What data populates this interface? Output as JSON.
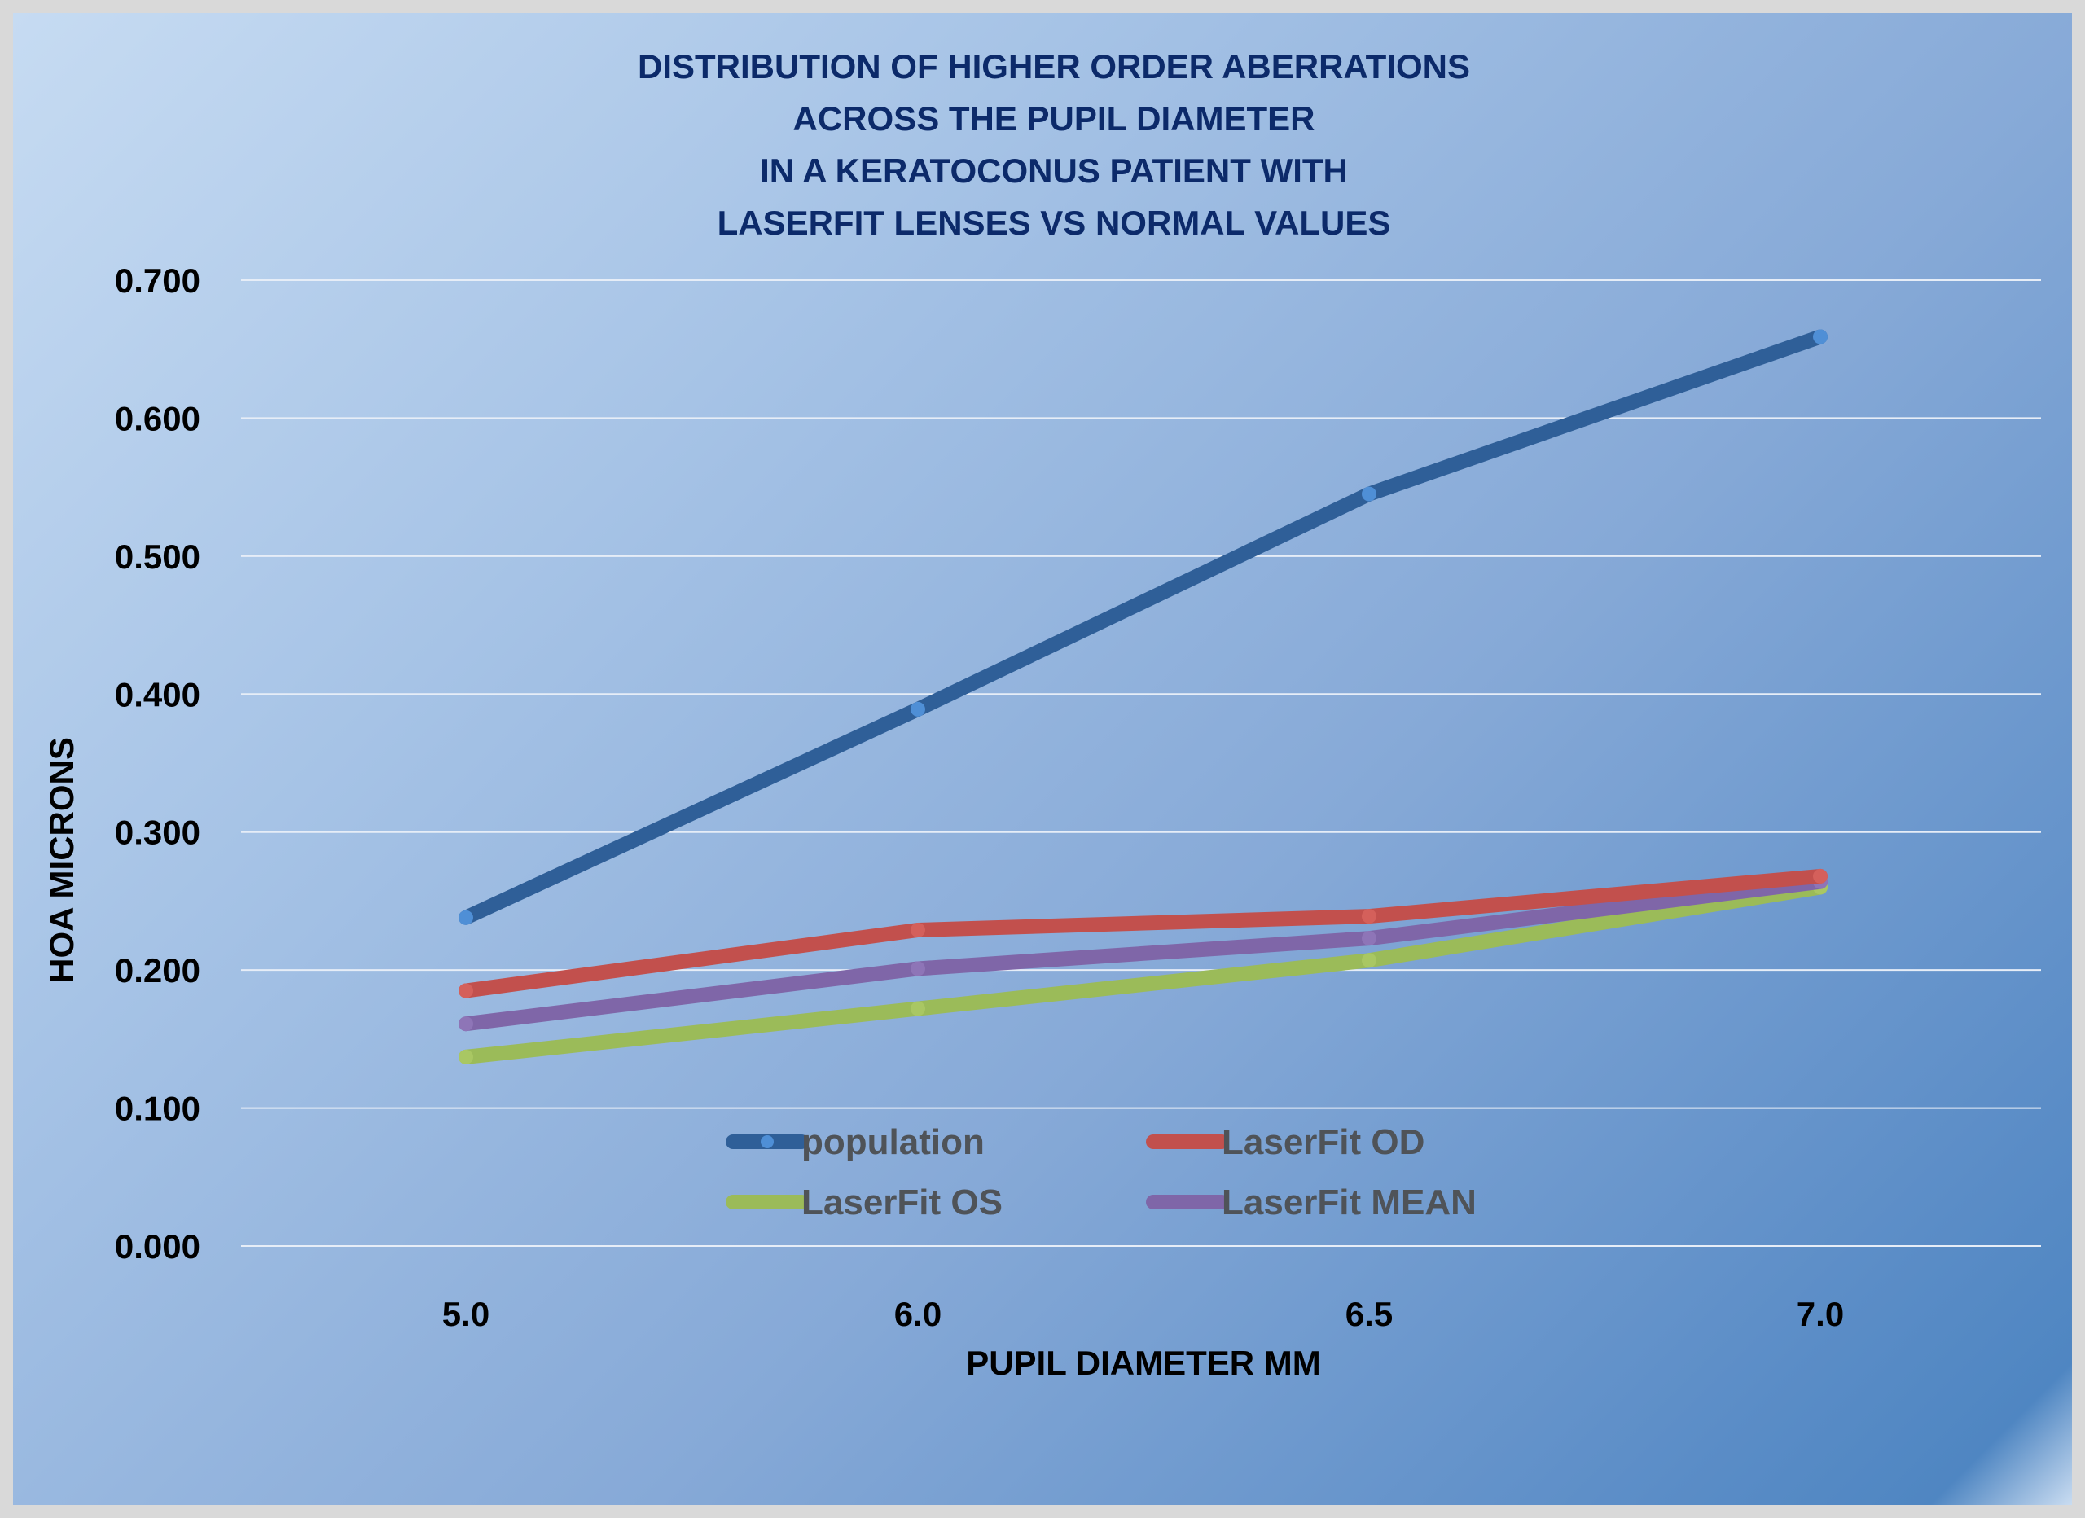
{
  "chart_data": {
    "type": "line",
    "title_lines": [
      "DISTRIBUTION OF HIGHER ORDER ABERRATIONS",
      "ACROSS THE PUPIL DIAMETER",
      "IN A KERATOCONUS PATIENT WITH",
      "LASERFIT LENSES VS NORMAL VALUES"
    ],
    "xlabel": "PUPIL DIAMETER MM",
    "ylabel": "HOA MICRONS",
    "categories": [
      "5.0",
      "6.0",
      "6.5",
      "7.0"
    ],
    "y_ticks": [
      "0.000",
      "0.100",
      "0.200",
      "0.300",
      "0.400",
      "0.500",
      "0.600",
      "0.700"
    ],
    "ylim": [
      0,
      0.7
    ],
    "grid": true,
    "legend_position": "bottom-center-inside",
    "series": [
      {
        "name": "population",
        "values": [
          0.238,
          0.389,
          0.545,
          0.659
        ],
        "color": "#2f5f98",
        "marker_color": "#4f8fd6"
      },
      {
        "name": "LaserFit OD",
        "values": [
          0.185,
          0.229,
          0.239,
          0.268
        ],
        "color": "#c2504d",
        "marker_color": "#d4605b"
      },
      {
        "name": "LaserFit OS",
        "values": [
          0.137,
          0.172,
          0.207,
          0.26
        ],
        "color": "#9bbb59",
        "marker_color": "#a9c763"
      },
      {
        "name": "LaserFit MEAN",
        "values": [
          0.161,
          0.201,
          0.223,
          0.264
        ],
        "color": "#7f66a8",
        "marker_color": "#8e75b7"
      }
    ]
  }
}
